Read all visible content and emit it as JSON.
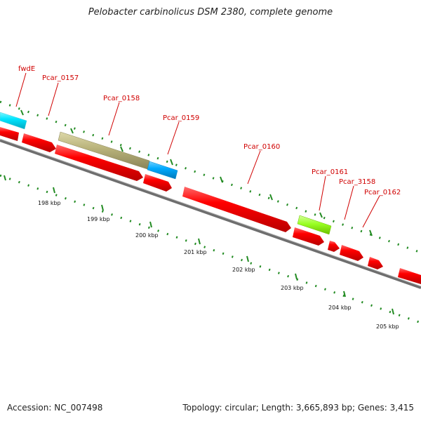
{
  "title": "Pelobacter carbinolicus DSM 2380, complete genome",
  "footer": {
    "accession": "Accession: NC_007498",
    "summary": "Topology: circular; Length: 3,665,893 bp; Genes: 3,415"
  },
  "gene_labels": [
    "fwdE",
    "Pcar_0157",
    "Pcar_0158",
    "Pcar_0159",
    "Pcar_0160",
    "Pcar_0161",
    "Pcar_3158",
    "Pcar_0162"
  ],
  "scale_labels": [
    "198 kbp",
    "199 kbp",
    "200 kbp",
    "201 kbp",
    "202 kbp",
    "203 kbp",
    "204 kbp",
    "205 kbp"
  ],
  "colors": {
    "cds": "#ff0000",
    "cyan_feature": "#00e5ff",
    "blue_feature": "#00aaff",
    "olive_feature": "#b8b27a",
    "green_feature": "#99ff22",
    "tick": "#228b22",
    "backbone": "#808080",
    "label_red": "#d00000"
  }
}
